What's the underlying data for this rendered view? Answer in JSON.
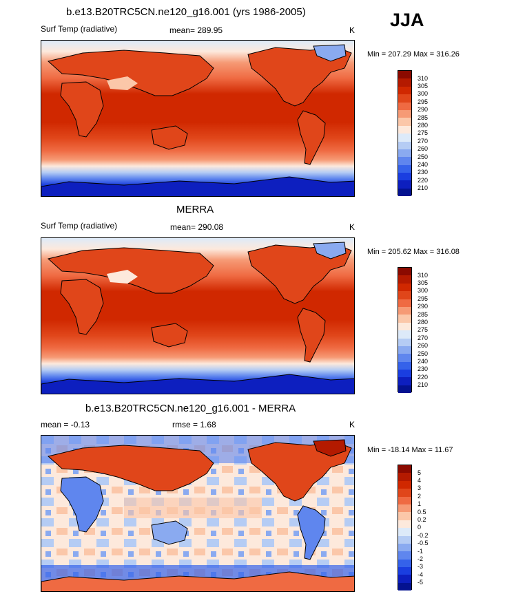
{
  "season": "JJA",
  "panels": [
    {
      "title": "b.e13.B20TRC5CN.ne120_g16.001 (yrs 1986-2005)",
      "left_label": "Surf Temp (radiative)",
      "center_label": "mean= 289.95",
      "units": "K",
      "minmax": "Min = 207.29 Max = 316.26",
      "levels": [
        "310",
        "305",
        "300",
        "295",
        "290",
        "285",
        "280",
        "275",
        "270",
        "260",
        "250",
        "240",
        "230",
        "220",
        "210"
      ]
    },
    {
      "title": "MERRA",
      "left_label": "Surf Temp (radiative)",
      "center_label": "mean= 290.08",
      "units": "K",
      "minmax": "Min = 205.62 Max = 316.08",
      "levels": [
        "310",
        "305",
        "300",
        "295",
        "290",
        "285",
        "280",
        "275",
        "270",
        "260",
        "250",
        "240",
        "230",
        "220",
        "210"
      ]
    },
    {
      "title": "b.e13.B20TRC5CN.ne120_g16.001 - MERRA",
      "left_label": "mean =  -0.13",
      "center_label": "rmse =   1.68",
      "units": "K",
      "minmax": "Min = -18.14 Max =  11.67",
      "levels": [
        "5",
        "4",
        "3",
        "2",
        "1",
        "0.5",
        "0.2",
        "0",
        "-0.2",
        "-0.5",
        "-1",
        "-2",
        "-3",
        "-4",
        "-5"
      ]
    }
  ],
  "colors": {
    "abs_scale": [
      "#8b0a00",
      "#b41a00",
      "#d02800",
      "#e0461a",
      "#ef6a42",
      "#f69a75",
      "#fbc7a9",
      "#fde9dc",
      "#ddeaf9",
      "#b5ccf4",
      "#8aaaf0",
      "#5f86ee",
      "#3562ea",
      "#1a3ee0",
      "#0d1fbf",
      "#041290"
    ],
    "diff_scale": [
      "#8b0a00",
      "#b41a00",
      "#d02800",
      "#e0461a",
      "#ef6a42",
      "#f69a75",
      "#fbc7a9",
      "#fde9dc",
      "#ddeaf9",
      "#b5ccf4",
      "#8aaaf0",
      "#5f86ee",
      "#3562ea",
      "#1a3ee0",
      "#0d1fbf",
      "#041290"
    ]
  }
}
